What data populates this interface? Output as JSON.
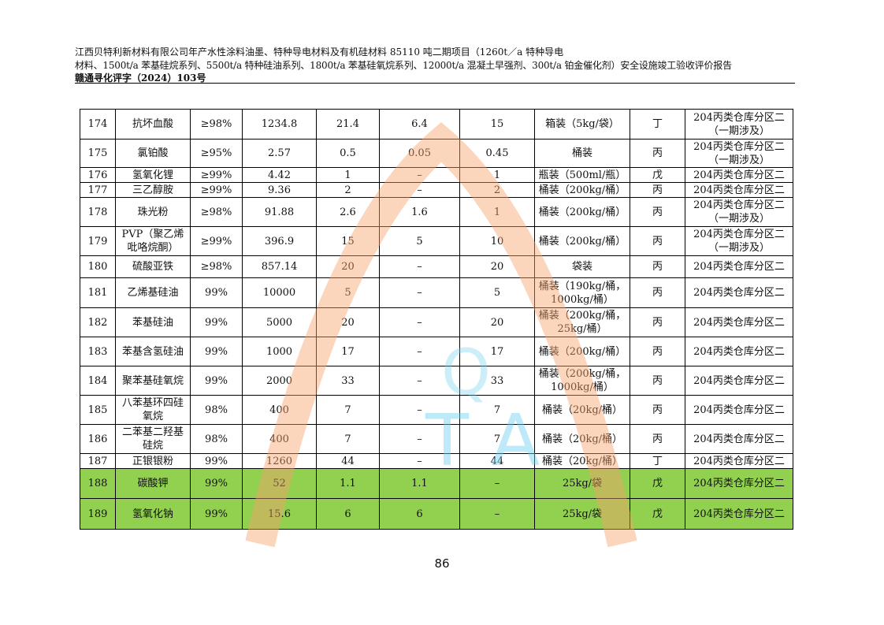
{
  "header": {
    "line1": "江西贝特利新材料有限公司年产水性涂料油墨、特种导电材料及有机硅材料 85110 吨二期项目（1260t／a 特种导电",
    "line2": "材料、1500t/a 苯基硅烷系列、5500t/a 特种硅油系列、1800t/a 苯基硅氧烷系列、12000t/a 混凝土早强剂、300t/a 铂金催化剂）安全设施竣工验收评价报告",
    "line3": "赣通寻化评字（2024）103号"
  },
  "rows": [
    [
      "174",
      "抗坏血酸",
      "≥98%",
      "1234.8",
      "21.4",
      "6.4",
      "15",
      "箱装（5kg/袋）",
      "丁",
      "204丙类仓库分区二（一期涉及）"
    ],
    [
      "175",
      "氯铂酸",
      "≥95%",
      "2.57",
      "0.5",
      "0.05",
      "0.45",
      "桶装",
      "丙",
      "204丙类仓库分区二（一期涉及）"
    ],
    [
      "176",
      "氢氧化锂",
      "≥99%",
      "4.42",
      "1",
      "–",
      "1",
      "瓶装（500ml/瓶）",
      "戊",
      "204丙类仓库分区二"
    ],
    [
      "177",
      "三乙醇胺",
      "≥99%",
      "9.36",
      "2",
      "–",
      "2",
      "桶装（200kg/桶）",
      "丙",
      "204丙类仓库分区二"
    ],
    [
      "178",
      "珠光粉",
      "≥98%",
      "91.88",
      "2.6",
      "1.6",
      "1",
      "桶装（200kg/桶）",
      "丙",
      "204丙类仓库分区二（一期涉及）"
    ],
    [
      "179",
      "PVP（聚乙烯吡咯烷酮）",
      "≥99%",
      "396.9",
      "15",
      "5",
      "10",
      "桶装（200kg/桶）",
      "丙",
      "204丙类仓库分区二（一期涉及）"
    ],
    [
      "180",
      "硫酸亚铁",
      "≥98%",
      "857.14",
      "20",
      "–",
      "20",
      "袋装",
      "丙",
      "204丙类仓库分区二"
    ],
    [
      "181",
      "乙烯基硅油",
      "99%",
      "10000",
      "5",
      "–",
      "5",
      "桶装（190kg/桶，1000kg/桶）",
      "丙",
      "204丙类仓库分区二"
    ],
    [
      "182",
      "苯基硅油",
      "99%",
      "5000",
      "20",
      "–",
      "20",
      "桶装（200kg/桶，25kg/桶）",
      "丙",
      "204丙类仓库分区二"
    ],
    [
      "183",
      "苯基含氢硅油",
      "99%",
      "1000",
      "17",
      "–",
      "17",
      "桶装（200kg/桶）",
      "丙",
      "204丙类仓库分区二"
    ],
    [
      "184",
      "聚苯基硅氧烷",
      "99%",
      "2000",
      "33",
      "–",
      "33",
      "桶装（200kg/桶，1000kg/桶）",
      "丙",
      "204丙类仓库分区二"
    ],
    [
      "185",
      "八苯基环四硅氧烷",
      "98%",
      "400",
      "7",
      "–",
      "7",
      "桶装（20kg/桶）",
      "丙",
      "204丙类仓库分区二"
    ],
    [
      "186",
      "二苯基二羟基硅烷",
      "98%",
      "400",
      "7",
      "–",
      "7",
      "桶装（20kg/桶）",
      "丙",
      "204丙类仓库分区二"
    ],
    [
      "187",
      "正银银粉",
      "99%",
      "1260",
      "44",
      "–",
      "44",
      "桶装（20kg/桶）",
      "丁",
      "204丙类仓库分区二"
    ],
    [
      "188",
      "碳酸钾",
      "99%",
      "52",
      "1.1",
      "1.1",
      "–",
      "25kg/袋",
      "戊",
      "204丙类仓库分区二"
    ],
    [
      "189",
      "氢氧化钠",
      "99%",
      "15.6",
      "6",
      "6",
      "–",
      "25kg/袋",
      "戊",
      "204丙类仓库分区二"
    ]
  ],
  "highlighted_rows": [
    "188",
    "189"
  ],
  "highlight_color": "#92d050",
  "page_number": "86"
}
